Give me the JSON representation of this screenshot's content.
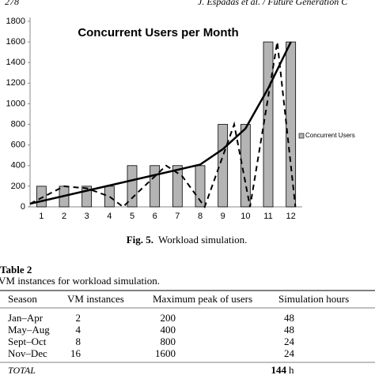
{
  "header": {
    "page": "278",
    "running_title": "J. Espadas et al. / Future Generation C"
  },
  "chart_data": {
    "type": "bar",
    "title": "Concurrent Users per Month",
    "categories": [
      "1",
      "2",
      "3",
      "4",
      "5",
      "6",
      "7",
      "8",
      "9",
      "10",
      "11",
      "12"
    ],
    "x": [
      1,
      2,
      3,
      4,
      5,
      6,
      7,
      8,
      9,
      10,
      11,
      12
    ],
    "series": [
      {
        "name": "Concurrent Users",
        "color": "#b4b4b4",
        "values": [
          200,
          200,
          200,
          200,
          400,
          400,
          400,
          400,
          800,
          800,
          1600,
          1600
        ]
      }
    ],
    "lines": [
      {
        "style": "solid",
        "color": "#000000",
        "x": [
          0.5,
          8,
          9,
          10,
          11,
          12
        ],
        "values": [
          30,
          410,
          560,
          760,
          1150,
          1600
        ]
      },
      {
        "style": "dashed",
        "color": "#000000",
        "x": [
          0.5,
          2,
          3,
          4,
          4.6,
          5.3,
          6.5,
          7.2,
          8.2,
          9.5,
          10.2,
          11.4,
          12.2
        ],
        "values": [
          30,
          200,
          180,
          100,
          0,
          150,
          400,
          300,
          0,
          800,
          0,
          1600,
          0
        ]
      }
    ],
    "xlim": [
      0.5,
      12.5
    ],
    "ylim": [
      0,
      1800
    ],
    "yticks": [
      0,
      200,
      400,
      600,
      800,
      1000,
      1200,
      1400,
      1600,
      1800
    ],
    "legend": "right",
    "grid": false
  },
  "caption": {
    "label": "Fig. 5.",
    "text": "Workload simulation."
  },
  "table": {
    "label": "Table 2",
    "caption": "VM instances for workload simulation.",
    "columns": [
      "Season",
      "VM instances",
      "Maximum peak of users",
      "Simulation hours"
    ],
    "rows": [
      [
        "Jan–Apr",
        "2",
        "200",
        "48"
      ],
      [
        "May–Aug",
        "4",
        "400",
        "48"
      ],
      [
        "Sept–Oct",
        "8",
        "800",
        "24"
      ],
      [
        "Nov–Dec",
        "16",
        "1600",
        "24"
      ]
    ],
    "total": {
      "label": "TOTAL",
      "hours": "144",
      "unit": "h"
    }
  }
}
